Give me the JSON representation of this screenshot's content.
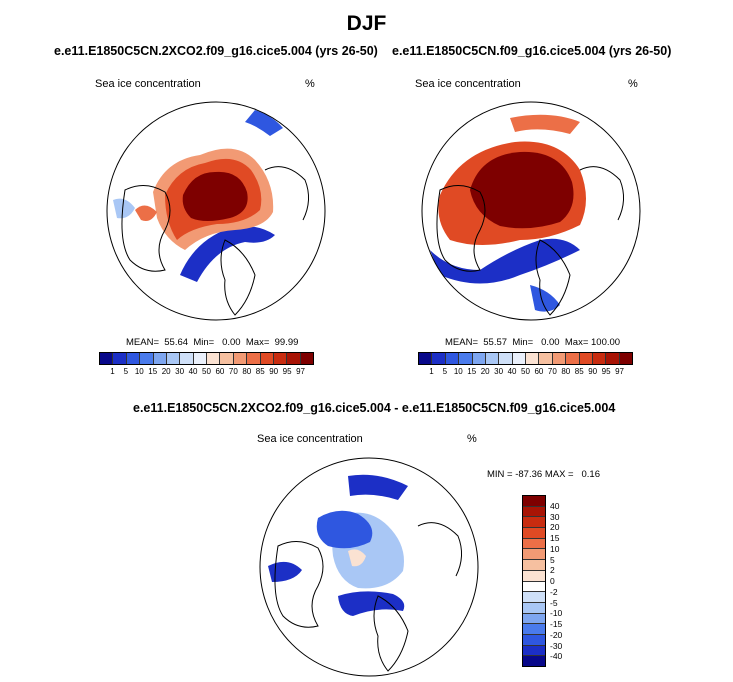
{
  "figure_title": "DJF",
  "panels": [
    {
      "case": "e.e11.E1850C5CN.2XCO2.f09_g16.cice5.004 (yrs 26-50)",
      "variable": "Sea ice concentration",
      "units": "%",
      "stats": "MEAN=  55.64  Min=   0.00  Max=  99.99"
    },
    {
      "case": "e.e11.E1850C5CN.f09_g16.cice5.004 (yrs 26-50)",
      "variable": "Sea ice concentration",
      "units": "%",
      "stats": "MEAN=  55.57  Min=   0.00  Max= 100.00"
    }
  ],
  "diff_panel": {
    "case": "e.e11.E1850C5CN.2XCO2.f09_g16.cice5.004 - e.e11.E1850C5CN.f09_g16.cice5.004",
    "variable": "Sea ice concentration",
    "units": "%",
    "stats": "MIN = -87.36 MAX =   0.16"
  },
  "colorbar_abs": {
    "ticks": [
      "1",
      "5",
      "10",
      "15",
      "20",
      "30",
      "40",
      "50",
      "60",
      "70",
      "80",
      "85",
      "90",
      "95",
      "97"
    ],
    "colors": [
      "#08088a",
      "#1c2fc6",
      "#2f57e0",
      "#4a7bec",
      "#7ea6f0",
      "#a9c7f5",
      "#cfe0f8",
      "#eaf0fb",
      "#fbe2d2",
      "#f6c0a0",
      "#f29a74",
      "#ec6f47",
      "#e04a24",
      "#c82c10",
      "#a81405",
      "#7e0000"
    ]
  },
  "colorbar_diff": {
    "ticks": [
      "40",
      "30",
      "20",
      "15",
      "10",
      "5",
      "2",
      "0",
      "-2",
      "-5",
      "-10",
      "-15",
      "-20",
      "-30",
      "-40"
    ],
    "colors": [
      "#7e0000",
      "#a81405",
      "#c82c10",
      "#e04a24",
      "#ec6f47",
      "#f29a74",
      "#f6c0a0",
      "#fbe2d2",
      "#ffffff",
      "#cfe0f8",
      "#a9c7f5",
      "#7ea6f0",
      "#4a7bec",
      "#2f57e0",
      "#1c2fc6",
      "#08088a"
    ]
  }
}
